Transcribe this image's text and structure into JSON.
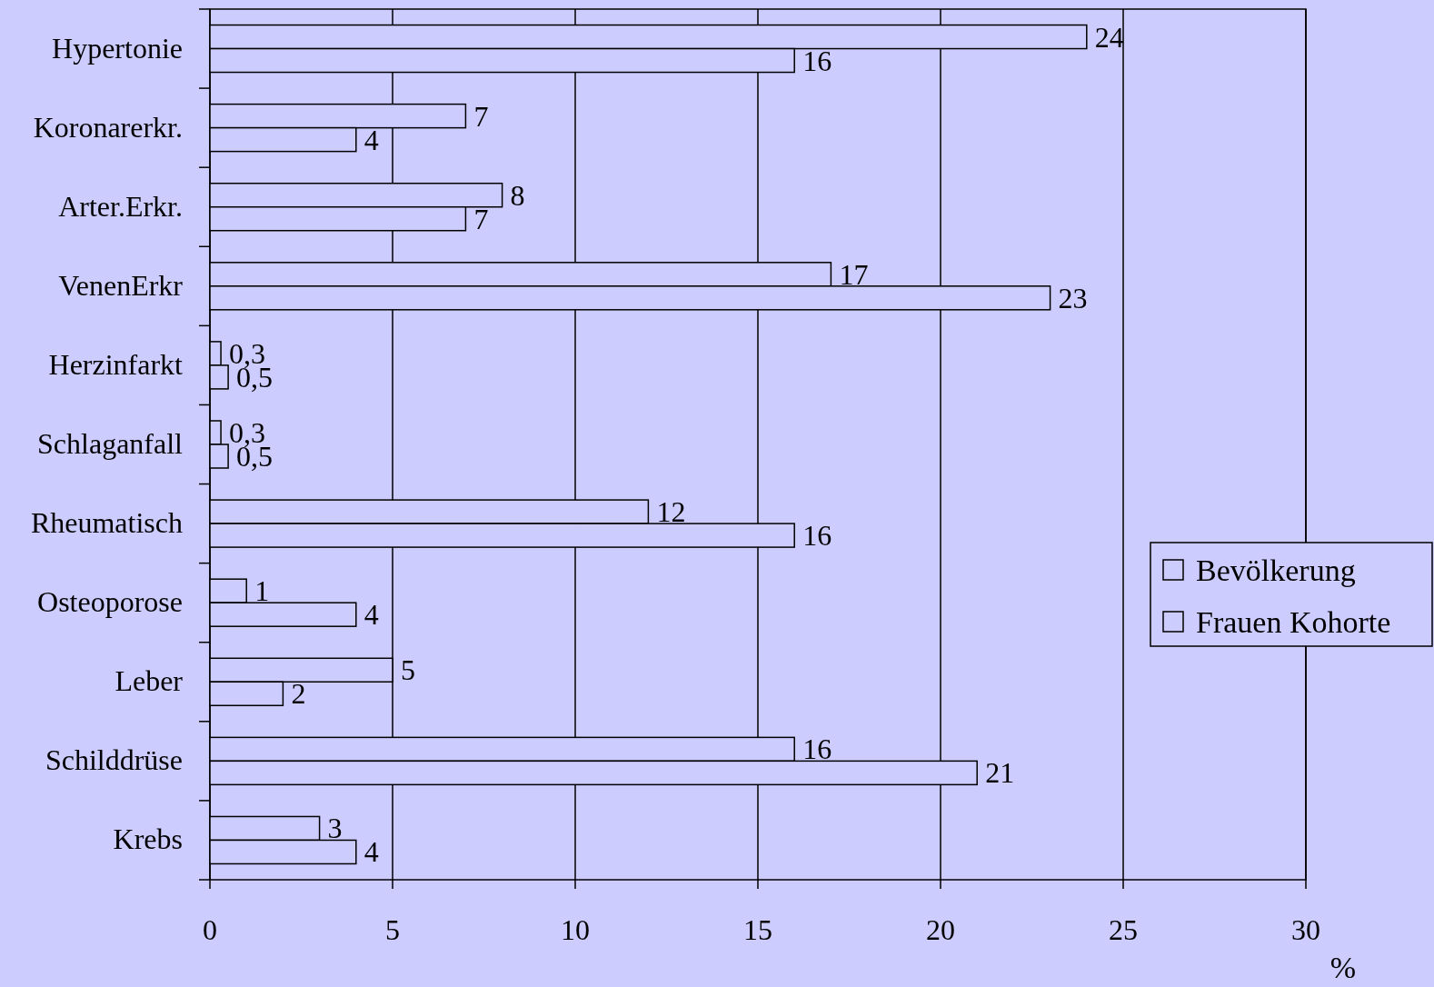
{
  "chart_data": {
    "type": "bar",
    "orientation": "horizontal",
    "xlabel": "%",
    "categories": [
      "Hypertonie",
      "Koronarerkr.",
      "Arter.Erkr.",
      "VenenErkr",
      "Herzinfarkt",
      "Schlaganfall",
      "Rheumatisch",
      "Osteoporose",
      "Leber",
      "Schilddrüse",
      "Krebs"
    ],
    "series": [
      {
        "name": "Bevölkerung",
        "color": "#ccccff",
        "values": [
          24,
          7,
          8,
          17,
          0.3,
          0.3,
          12,
          1,
          5,
          16,
          3
        ],
        "value_labels": [
          "24",
          "7",
          "8",
          "17",
          "0,3",
          "0,3",
          "12",
          "1",
          "5",
          "16",
          "3"
        ]
      },
      {
        "name": "Frauen Kohorte",
        "color": "#ccccff",
        "values": [
          16,
          4,
          7,
          23,
          0.5,
          0.5,
          16,
          4,
          2,
          21,
          4
        ],
        "value_labels": [
          "16",
          "4",
          "7",
          "23",
          "0,5",
          "0,5",
          "16",
          "4",
          "2",
          "21",
          "4"
        ]
      }
    ],
    "xlim": [
      0,
      30
    ],
    "xticks": [
      0,
      5,
      10,
      15,
      20,
      25,
      30
    ],
    "grid": "x",
    "legend": "right"
  }
}
